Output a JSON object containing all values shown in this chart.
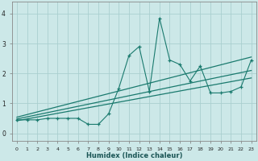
{
  "xlabel": "Humidex (Indice chaleur)",
  "ylabel": "",
  "bg_color": "#cce8e8",
  "grid_color": "#aacfcf",
  "line_color": "#1a7a6e",
  "xlim": [
    -0.5,
    23.5
  ],
  "ylim": [
    -0.25,
    4.4
  ],
  "xticks": [
    0,
    1,
    2,
    3,
    4,
    5,
    6,
    7,
    8,
    9,
    10,
    11,
    12,
    13,
    14,
    15,
    16,
    17,
    18,
    19,
    20,
    21,
    22,
    23
  ],
  "yticks": [
    0,
    1,
    2,
    3,
    4
  ],
  "scatter_x": [
    0,
    1,
    2,
    3,
    4,
    5,
    6,
    7,
    8,
    9,
    10,
    11,
    12,
    13,
    14,
    15,
    16,
    17,
    18,
    19,
    20,
    21,
    22,
    23
  ],
  "scatter_y": [
    0.45,
    0.45,
    0.45,
    0.5,
    0.5,
    0.5,
    0.5,
    0.3,
    0.3,
    0.65,
    1.5,
    2.6,
    2.9,
    1.4,
    3.85,
    2.45,
    2.3,
    1.75,
    2.25,
    1.35,
    1.35,
    1.4,
    1.55,
    2.45
  ],
  "line1_x": [
    0,
    23
  ],
  "line1_y": [
    0.42,
    1.85
  ],
  "line2_x": [
    0,
    23
  ],
  "line2_y": [
    0.48,
    2.1
  ],
  "line3_x": [
    0,
    23
  ],
  "line3_y": [
    0.54,
    2.55
  ]
}
